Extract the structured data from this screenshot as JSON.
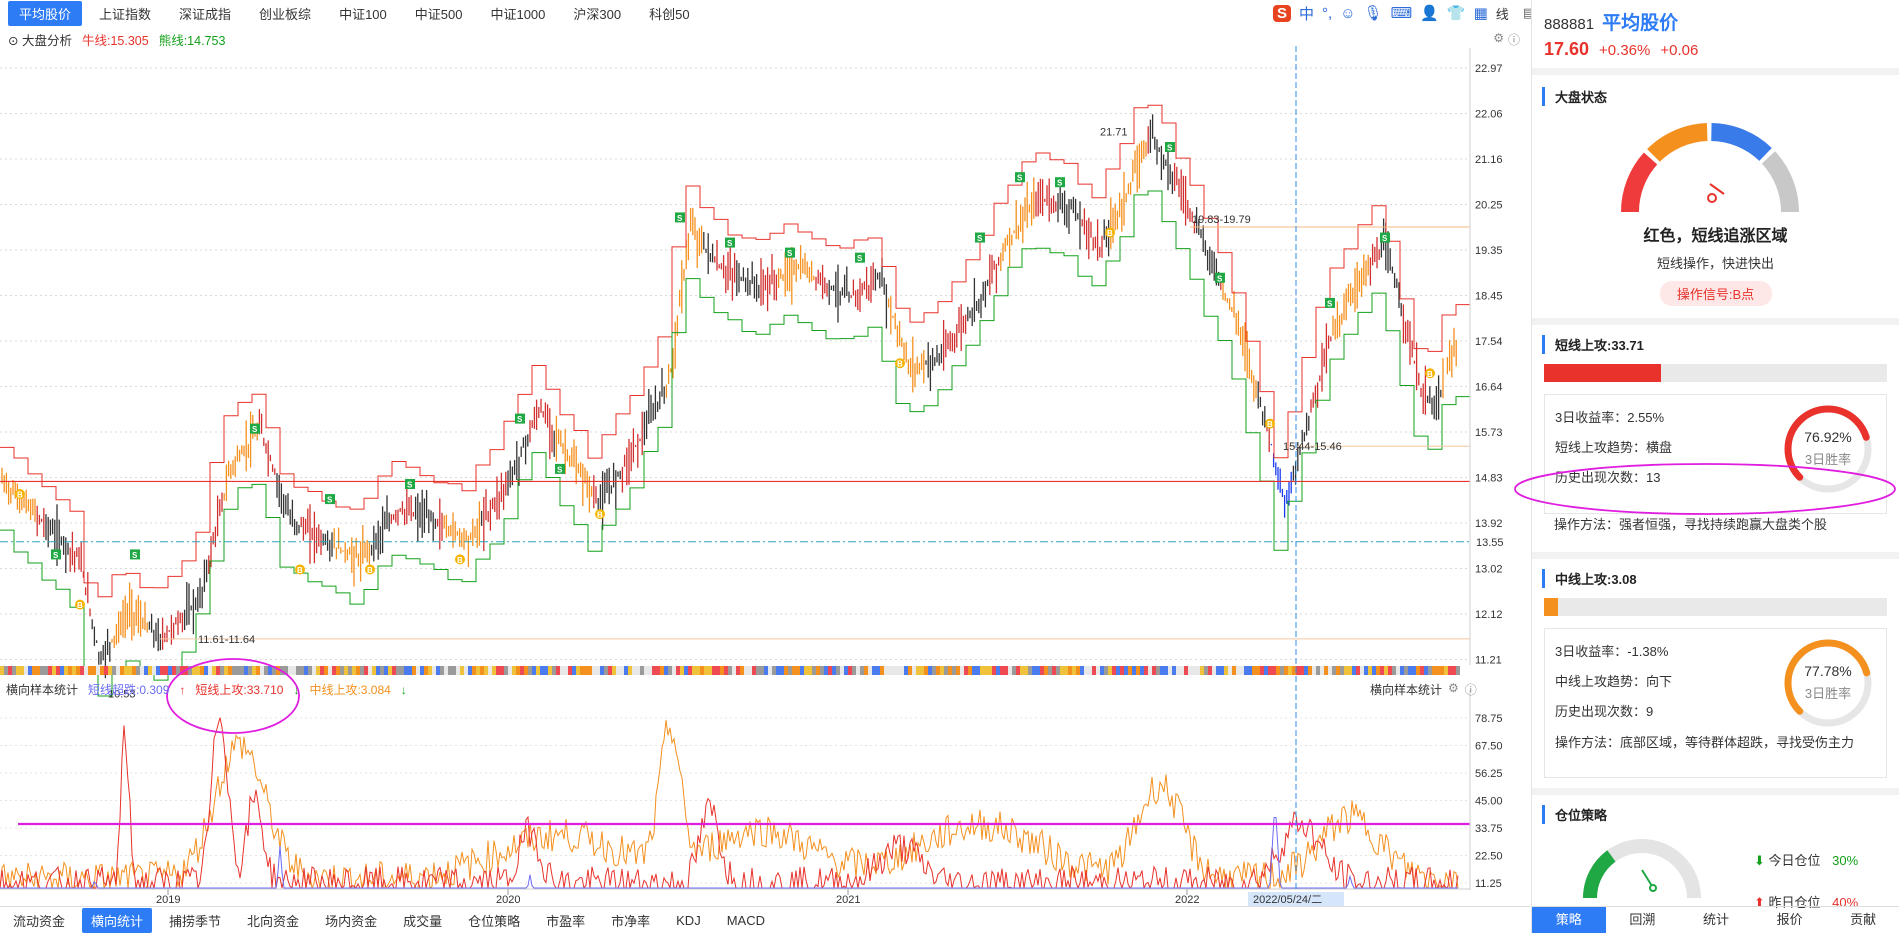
{
  "top_tabs": [
    "平均股价",
    "上证指数",
    "深证成指",
    "创业板综",
    "中证100",
    "中证500",
    "中证1000",
    "沪深300",
    "科创50"
  ],
  "ime_label": "中",
  "ime_s": "S",
  "ime_trailing": "线",
  "sub_bar": {
    "analysis": "大盘分析",
    "bull": "牛线:15.305",
    "bear": "熊线:14.753"
  },
  "upper_price_axis": [
    "22.97",
    "22.06",
    "21.16",
    "20.25",
    "19.35",
    "18.45",
    "17.54",
    "16.64",
    "15.73",
    "14.83",
    "13.92",
    "13.02",
    "12.12",
    "11.21"
  ],
  "current_level_label": "13.55",
  "annotations": {
    "high": "21.71",
    "resist": "19.83-19.79",
    "low1": "10.53",
    "low_range": "11.61-11.64",
    "mid_range": "15.44-15.46"
  },
  "lower_bar": {
    "label": "横向样本统计",
    "s1": "短线超跌:0.309",
    "s2": "短线上攻:33.710",
    "s3": "中线上攻:3.084"
  },
  "lower_right_label": "横向样本统计",
  "lower_axis": [
    "78.75",
    "67.50",
    "56.25",
    "45.00",
    "33.75",
    "22.50",
    "11.25"
  ],
  "x_axis_years": [
    "2019",
    "2020",
    "2021",
    "2022"
  ],
  "crosshair_date": "2022/05/24/二",
  "bottom_tabs": [
    "流动资金",
    "横向统计",
    "捕捞季节",
    "北向资金",
    "场内资金",
    "成交量",
    "仓位策略",
    "市盈率",
    "市净率",
    "KDJ",
    "MACD"
  ],
  "bottom_active": 1,
  "stock": {
    "code": "888881",
    "name": "平均股价",
    "price": "17.60",
    "pct": "+0.36%",
    "chg": "+0.06"
  },
  "market_state": {
    "title": "大盘状态",
    "label": "红色，短线追涨区域",
    "sub": "短线操作，快进快出",
    "signal": "操作信号:B点"
  },
  "short_attack": {
    "title": "短线上攻:33.71",
    "fill": 0.34,
    "ret3": "3日收益率：2.55%",
    "trend": "短线上攻趋势：横盘",
    "count": "历史出现次数：13",
    "method": "操作方法：强者恒强，寻找持续跑赢大盘类个股",
    "ring_value": "76.92%",
    "ring_label": "3日胜率",
    "ring_frac": 0.7692
  },
  "mid_attack": {
    "title": "中线上攻:3.08",
    "fill": 0.03,
    "ret3": "3日收益率：-1.38%",
    "trend": "中线上攻趋势：向下",
    "count": "历史出现次数：9",
    "method": "操作方法：底部区域，等待群体超跌，寻找受伤主力",
    "ring_value": "77.78%",
    "ring_label": "3日胜率",
    "ring_frac": 0.7778
  },
  "position": {
    "title": "仓位策略",
    "today": "今日仓位",
    "today_val": "30%",
    "yest": "昨日仓位",
    "yest_val": "40%"
  },
  "right_tabs": [
    "策略",
    "回溯",
    "统计",
    "报价",
    "贡献"
  ],
  "colors": {
    "red": "#e8322b",
    "green": "#13a01a",
    "orange": "#f4901e",
    "blue": "#2d7cf6",
    "magenta": "#e01ee0"
  }
}
